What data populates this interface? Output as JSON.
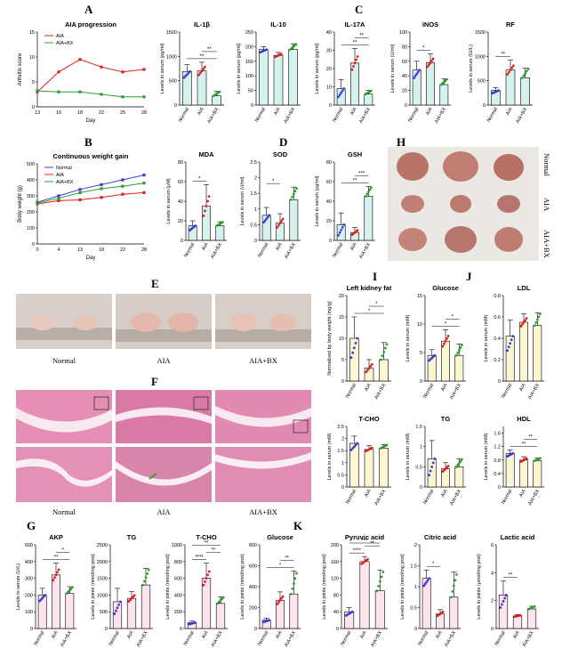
{
  "panel_letters": [
    "A",
    "B",
    "C",
    "D",
    "E",
    "F",
    "G",
    "H",
    "I",
    "J",
    "K"
  ],
  "photo_captions": {
    "E": [
      "Normal",
      "AIA",
      "AIA+BX"
    ],
    "F": [
      "Normal",
      "AIA",
      "AIA+BX"
    ],
    "H": [
      "Normal",
      "AIA",
      "AIA+BX"
    ]
  },
  "colors": {
    "normal": "#3b3bd9",
    "aia": "#e02020",
    "aia_bx": "#2ca02c",
    "fill_c": "#d6f2ee",
    "fill_i": "#fdf6d2",
    "fill_k": "#fde4ee"
  },
  "chart_data": [
    {
      "id": "A",
      "type": "line",
      "title": "AIA progression",
      "xlabel": "Day",
      "ylabel": "Arthritis score",
      "x": [
        13,
        16,
        18,
        22,
        25,
        28
      ],
      "ylim": [
        0,
        15
      ],
      "yticks": [
        0,
        5,
        10,
        15
      ],
      "legend": [
        "AIA",
        "AIA+BX"
      ],
      "series": [
        {
          "name": "AIA",
          "values": [
            3,
            7,
            9.5,
            8,
            7,
            7.5
          ]
        },
        {
          "name": "AIA+BX",
          "values": [
            3.2,
            3,
            3,
            2.5,
            2,
            2
          ]
        }
      ]
    },
    {
      "id": "B",
      "type": "line",
      "title": "Continuous weight gain",
      "xlabel": "Day",
      "ylabel": "Body weight (g)",
      "x": [
        0,
        4,
        13,
        18,
        22,
        28
      ],
      "ylim": [
        0,
        500
      ],
      "yticks": [
        0,
        100,
        200,
        300,
        400,
        500
      ],
      "legend": [
        "Normal",
        "AIA",
        "AIA+BX"
      ],
      "series": [
        {
          "name": "Normal",
          "values": [
            260,
            300,
            340,
            370,
            400,
            430
          ]
        },
        {
          "name": "AIA",
          "values": [
            250,
            270,
            275,
            290,
            310,
            320
          ]
        },
        {
          "name": "AIA+BX",
          "values": [
            255,
            285,
            320,
            345,
            360,
            380
          ]
        }
      ]
    },
    {
      "id": "IL1b",
      "type": "bar",
      "title": "IL-1β",
      "ylabel": "Levels in serum (pg/ml)",
      "categories": [
        "Normal",
        "AIA",
        "AIA+BX"
      ],
      "values": [
        690,
        700,
        190
      ],
      "errors": [
        140,
        180,
        90
      ],
      "ylim": [
        0,
        1500
      ],
      "yticks": [
        0,
        500,
        1000,
        1500
      ],
      "sig": [
        "**",
        "**"
      ],
      "group": "C"
    },
    {
      "id": "IL10",
      "type": "bar",
      "title": "IL-10",
      "ylabel": "Levels in serum (pg/ml)",
      "categories": [
        "Normal",
        "AIA",
        "AIA+BX"
      ],
      "values": [
        190,
        170,
        190
      ],
      "errors": [
        10,
        10,
        20
      ],
      "ylim": [
        0,
        250
      ],
      "yticks": [
        0,
        50,
        100,
        150,
        200,
        250
      ],
      "sig": [],
      "group": "C"
    },
    {
      "id": "IL17A",
      "type": "bar",
      "title": "IL-17A",
      "ylabel": "Levels in serum (pg/ml)",
      "categories": [
        "Normal",
        "AIA",
        "AIA+BX"
      ],
      "values": [
        9,
        23,
        6
      ],
      "errors": [
        5,
        8,
        2
      ],
      "ylim": [
        0,
        40
      ],
      "yticks": [
        0,
        10,
        20,
        30,
        40
      ],
      "sig": [
        "**",
        "**"
      ],
      "group": "C"
    },
    {
      "id": "iNOS",
      "type": "bar",
      "title": "iNOS",
      "ylabel": "Levels in serum (U/ml)",
      "categories": [
        "Normal",
        "AIA",
        "AIA+BX"
      ],
      "values": [
        48,
        58,
        28
      ],
      "errors": [
        12,
        12,
        8
      ],
      "ylim": [
        0,
        100
      ],
      "yticks": [
        0,
        20,
        40,
        60,
        80,
        100
      ],
      "sig": [
        "*"
      ],
      "group": "C"
    },
    {
      "id": "RF",
      "type": "bar",
      "title": "RF",
      "ylabel": "Levels in serum (IU/L)",
      "categories": [
        "Normal",
        "AIA",
        "AIA+BX"
      ],
      "values": [
        300,
        720,
        560
      ],
      "errors": [
        60,
        200,
        200
      ],
      "ylim": [
        0,
        1500
      ],
      "yticks": [
        0,
        500,
        1000,
        1500
      ],
      "sig": [
        "**"
      ],
      "group": "C"
    },
    {
      "id": "MDA",
      "type": "bar",
      "title": "MDA",
      "ylabel": "Levels in serum (µM)",
      "categories": [
        "Normal",
        "AIA",
        "AIA+BX"
      ],
      "values": [
        15,
        35,
        15
      ],
      "errors": [
        5,
        22,
        4
      ],
      "ylim": [
        0,
        80
      ],
      "yticks": [
        0,
        20,
        40,
        60,
        80
      ],
      "sig": [
        "*"
      ],
      "group": "C"
    },
    {
      "id": "SOD",
      "type": "bar",
      "title": "SOD",
      "ylabel": "Levels in serum (U/ml)",
      "categories": [
        "Normal",
        "AIA",
        "AIA+BX"
      ],
      "values": [
        0.8,
        0.55,
        1.3
      ],
      "errors": [
        0.25,
        0.3,
        0.4
      ],
      "ylim": [
        0,
        2.5
      ],
      "yticks": [
        0,
        0.5,
        1,
        1.5,
        2,
        2.5
      ],
      "sig": [
        "*"
      ],
      "group": "C"
    },
    {
      "id": "GSH",
      "type": "bar",
      "title": "GSH",
      "ylabel": "Levels in serum (µg/ml)",
      "categories": [
        "Normal",
        "AIA",
        "AIA+BX"
      ],
      "values": [
        16,
        8,
        45
      ],
      "errors": [
        12,
        5,
        10
      ],
      "ylim": [
        0,
        80
      ],
      "yticks": [
        0,
        20,
        40,
        60,
        80
      ],
      "sig": [
        "**",
        "***"
      ],
      "group": "C"
    },
    {
      "id": "LKF",
      "type": "bar",
      "title": "Left kidney fat",
      "ylabel": "Normalized by body weight (mg/g)",
      "categories": [
        "Normal",
        "AIA",
        "AIA+BX"
      ],
      "values": [
        10,
        3,
        5
      ],
      "errors": [
        5,
        2,
        4
      ],
      "ylim": [
        0,
        20
      ],
      "yticks": [
        0,
        5,
        10,
        15,
        20
      ],
      "sig": [
        "*",
        "*"
      ],
      "group": "I"
    },
    {
      "id": "GluI",
      "type": "bar",
      "title": "Glucose",
      "ylabel": "Levels in serum (mM)",
      "categories": [
        "Normal",
        "AIA",
        "AIA+BX"
      ],
      "values": [
        4.5,
        7,
        4.5
      ],
      "errors": [
        1,
        2,
        2
      ],
      "ylim": [
        0,
        15
      ],
      "yticks": [
        0,
        5,
        10,
        15
      ],
      "sig": [
        "*",
        "*"
      ],
      "group": "I"
    },
    {
      "id": "LDL",
      "type": "bar",
      "title": "LDL",
      "ylabel": "Levels in serum (mM)",
      "categories": [
        "Normal",
        "AIA",
        "AIA+BX"
      ],
      "values": [
        0.42,
        0.55,
        0.52
      ],
      "errors": [
        0.15,
        0.08,
        0.12
      ],
      "ylim": [
        0,
        0.8
      ],
      "yticks": [
        0,
        0.2,
        0.4,
        0.6,
        0.8
      ],
      "sig": [],
      "group": "I"
    },
    {
      "id": "TCHOI",
      "type": "bar",
      "title": "T-CHO",
      "ylabel": "Levels in serum (mM)",
      "categories": [
        "Normal",
        "AIA",
        "AIA+BX"
      ],
      "values": [
        1.8,
        1.55,
        1.6
      ],
      "errors": [
        0.3,
        0.15,
        0.15
      ],
      "ylim": [
        0,
        2.5
      ],
      "yticks": [
        0,
        0.5,
        1,
        1.5,
        2,
        2.5
      ],
      "sig": [],
      "group": "I"
    },
    {
      "id": "TG",
      "type": "bar",
      "title": "TG",
      "ylabel": "Levels in serum (mM)",
      "categories": [
        "Normal",
        "AIA",
        "AIA+BX"
      ],
      "values": [
        0.7,
        0.45,
        0.5
      ],
      "errors": [
        0.45,
        0.15,
        0.2
      ],
      "ylim": [
        0,
        1.5
      ],
      "yticks": [
        0,
        0.5,
        1,
        1.5
      ],
      "sig": [],
      "group": "I"
    },
    {
      "id": "HDL",
      "type": "bar",
      "title": "HDL",
      "ylabel": "Levels in serum (mM)",
      "categories": [
        "Normal",
        "AIA",
        "AIA+BX"
      ],
      "values": [
        1.0,
        0.8,
        0.78
      ],
      "errors": [
        0.1,
        0.1,
        0.08
      ],
      "ylim": [
        0,
        1.8
      ],
      "yticks": [
        0,
        0.4,
        0.8,
        1.2,
        1.6
      ],
      "sig": [
        "**",
        "**"
      ],
      "group": "I"
    },
    {
      "id": "AKP",
      "type": "bar",
      "title": "AKP",
      "ylabel": "Levels in serum (U/L)",
      "categories": [
        "Normal",
        "AIA",
        "AIA+BX"
      ],
      "values": [
        200,
        320,
        210
      ],
      "errors": [
        40,
        70,
        40
      ],
      "ylim": [
        0,
        500
      ],
      "yticks": [
        0,
        100,
        200,
        300,
        400,
        500
      ],
      "sig": [
        "**",
        "*"
      ],
      "group": "K"
    },
    {
      "id": "TGj",
      "type": "bar",
      "title": "TG",
      "ylabel": "Levels in joints (nmol/mg prot)",
      "categories": [
        "Normal",
        "AIA",
        "AIA+BX"
      ],
      "values": [
        800,
        900,
        1300
      ],
      "errors": [
        400,
        200,
        500
      ],
      "ylim": [
        0,
        2500
      ],
      "yticks": [
        0,
        500,
        1000,
        1500,
        2000,
        2500
      ],
      "sig": [],
      "group": "K"
    },
    {
      "id": "TCHOj",
      "type": "bar",
      "title": "T-CHO",
      "ylabel": "Levels in joints (nmol/mg prot)",
      "categories": [
        "Normal",
        "AIA",
        "AIA+BX"
      ],
      "values": [
        70,
        600,
        300
      ],
      "errors": [
        20,
        180,
        80
      ],
      "ylim": [
        0,
        1000
      ],
      "yticks": [
        0,
        200,
        400,
        600,
        800,
        1000
      ],
      "sig": [
        "****",
        "**",
        "**"
      ],
      "group": "K"
    },
    {
      "id": "Gluj",
      "type": "bar",
      "title": "Glucose",
      "ylabel": "Levels in joints (nmol/mg prot)",
      "categories": [
        "Normal",
        "AIA",
        "AIA+BX"
      ],
      "values": [
        80,
        270,
        330
      ],
      "errors": [
        20,
        80,
        220
      ],
      "ylim": [
        0,
        800
      ],
      "yticks": [
        0,
        200,
        400,
        600,
        800
      ],
      "sig": [
        "*",
        "**"
      ],
      "group": "K"
    },
    {
      "id": "Pyr",
      "type": "bar",
      "title": "Pyruvic acid",
      "ylabel": "Levels in joints (nmol/mg prot)",
      "categories": [
        "Normal",
        "AIA",
        "AIA+BX"
      ],
      "values": [
        40,
        160,
        90
      ],
      "errors": [
        10,
        12,
        50
      ],
      "ylim": [
        0,
        200
      ],
      "yticks": [
        0,
        40,
        80,
        120,
        160,
        200
      ],
      "sig": [
        "****",
        "**",
        "***"
      ],
      "group": "K"
    },
    {
      "id": "Cit",
      "type": "bar",
      "title": "Citric acid",
      "ylabel": "Levels in joints (nmol/mg prot)",
      "categories": [
        "Normal",
        "AIA",
        "AIA+BX"
      ],
      "values": [
        1.2,
        0.35,
        0.75
      ],
      "errors": [
        0.2,
        0.1,
        0.6
      ],
      "ylim": [
        0,
        2
      ],
      "yticks": [
        0,
        0.5,
        1,
        1.5,
        2
      ],
      "sig": [
        "*"
      ],
      "group": "K"
    },
    {
      "id": "Lac",
      "type": "bar",
      "title": "Lactic acid",
      "ylabel": "Levels in joints (µmol/mg prot)",
      "categories": [
        "Normal",
        "AIA",
        "AIA+BX"
      ],
      "values": [
        2.4,
        0.9,
        1.4
      ],
      "errors": [
        1.0,
        0.1,
        0.2
      ],
      "ylim": [
        0,
        6
      ],
      "yticks": [
        0,
        2,
        4,
        6
      ],
      "sig": [
        "**"
      ],
      "group": "K"
    }
  ]
}
